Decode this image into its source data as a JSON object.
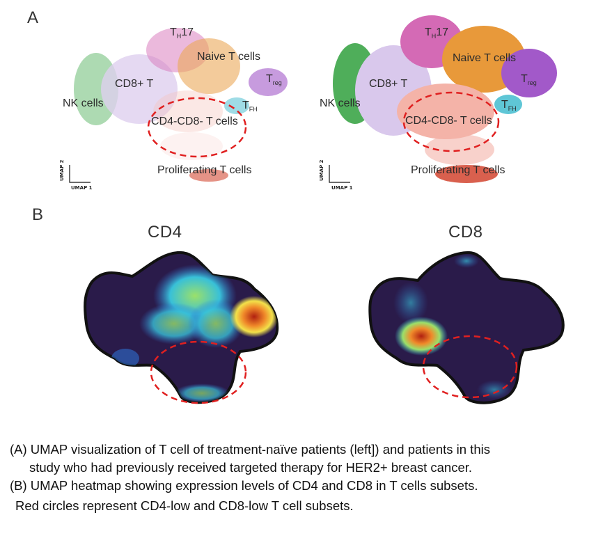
{
  "panel_a": {
    "letter": "A",
    "umaps": [
      {
        "labels": {
          "th17": {
            "main": "T",
            "sub": "H",
            "rest": "17"
          },
          "naive": "Naive T cells",
          "treg": {
            "main": "T",
            "sub": "reg"
          },
          "cd8": "CD8+ T",
          "nk": "NK cells",
          "tfh": {
            "main": "T",
            "sub": "FH"
          },
          "dn": "CD4-CD8- T cells",
          "prolif": "Proliferating T cells"
        },
        "axis": {
          "x": "UMAP 1",
          "y": "UMAP 2"
        }
      },
      {
        "labels": {
          "th17": {
            "main": "T",
            "sub": "H",
            "rest": "17"
          },
          "naive": "Naive T cells",
          "treg": {
            "main": "T",
            "sub": "reg"
          },
          "cd8": "CD8+ T",
          "nk": "NK cells",
          "tfh": {
            "main": "T",
            "sub": "FH"
          },
          "dn": "CD4-CD8- T cells",
          "prolif": "Proliferating T cells"
        },
        "axis": {
          "x": "UMAP 1",
          "y": "UMAP 2"
        }
      }
    ],
    "colors": {
      "nk": "#4fae5a",
      "cd8": "#d9c8ec",
      "th17": "#d46ab5",
      "naive": "#e8993a",
      "treg": "#a259c9",
      "tfh": "#5fc6d6",
      "dn": "#f4b3a8",
      "prolif": "#d9604e",
      "circle": "#e02020"
    }
  },
  "panel_b": {
    "letter": "B",
    "heatmaps": [
      {
        "title": "CD4"
      },
      {
        "title": "CD8"
      }
    ],
    "colormap": [
      "#2a1b4a",
      "#2f6fd0",
      "#38c0d8",
      "#9be06a",
      "#f2e14a",
      "#f08a2a",
      "#b02010"
    ]
  },
  "caption": {
    "line1": "(A) UMAP visualization of T cell of treatment-naïve patients (left]) and patients in this",
    "line2": "study who had previously received targeted therapy for HER2+ breast cancer.",
    "line3": "(B) UMAP heatmap showing expression levels of CD4 and CD8 in T cells subsets.",
    "line4": "Red circles represent CD4-low and CD8-low T cell subsets."
  }
}
